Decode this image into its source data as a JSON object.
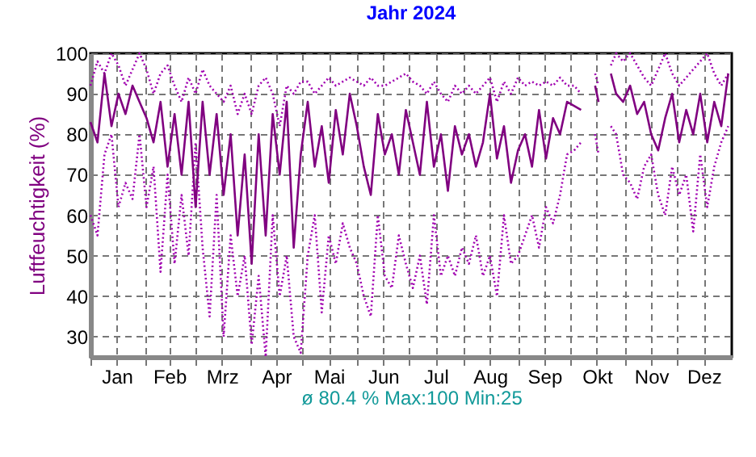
{
  "chart_data": {
    "type": "line",
    "title": "Jahr 2024",
    "xlabel": "ø 80.4 % Max:100 Min:25",
    "ylabel": "Luftfeuchtigkeit (%)",
    "x": [
      "2024-01-01",
      "2024-01-05",
      "2024-01-09",
      "2024-01-13",
      "2024-01-17",
      "2024-01-21",
      "2024-01-25",
      "2024-01-29",
      "2024-02-02",
      "2024-02-06",
      "2024-02-10",
      "2024-02-14",
      "2024-02-18",
      "2024-02-22",
      "2024-02-26",
      "2024-03-01",
      "2024-03-05",
      "2024-03-09",
      "2024-03-13",
      "2024-03-17",
      "2024-03-21",
      "2024-03-25",
      "2024-03-29",
      "2024-04-02",
      "2024-04-06",
      "2024-04-10",
      "2024-04-14",
      "2024-04-18",
      "2024-04-22",
      "2024-04-26",
      "2024-04-30",
      "2024-05-04",
      "2024-05-08",
      "2024-05-12",
      "2024-05-16",
      "2024-05-20",
      "2024-05-24",
      "2024-05-28",
      "2024-06-01",
      "2024-06-05",
      "2024-06-09",
      "2024-06-13",
      "2024-06-17",
      "2024-06-21",
      "2024-06-25",
      "2024-06-29",
      "2024-07-03",
      "2024-07-07",
      "2024-07-11",
      "2024-07-15",
      "2024-07-19",
      "2024-07-23",
      "2024-07-27",
      "2024-07-31",
      "2024-08-04",
      "2024-08-08",
      "2024-08-12",
      "2024-08-16",
      "2024-08-20",
      "2024-08-24",
      "2024-08-28",
      "2024-09-01",
      "2024-09-05",
      "2024-09-09",
      "2024-09-13",
      "2024-09-17",
      "2024-09-21",
      "2024-09-25",
      "2024-09-29",
      "2024-10-03",
      "2024-10-07",
      "2024-10-11",
      "2024-10-15",
      "2024-10-17",
      "2024-10-19",
      "2024-10-24",
      "2024-10-27",
      "2024-10-31",
      "2024-11-04",
      "2024-11-08",
      "2024-11-12",
      "2024-11-16",
      "2024-11-20",
      "2024-11-24",
      "2024-11-28",
      "2024-12-02",
      "2024-12-06",
      "2024-12-10",
      "2024-12-14",
      "2024-12-18",
      "2024-12-22",
      "2024-12-26",
      "2024-12-30"
    ],
    "series": [
      {
        "color": "#a000b0",
        "line_style": "dotted",
        "values": [
          60,
          55,
          75,
          80,
          62,
          68,
          64,
          80,
          62,
          72,
          46,
          70,
          48,
          65,
          50,
          78,
          52,
          35,
          65,
          30,
          55,
          40,
          50,
          28,
          45,
          25,
          60,
          40,
          50,
          30,
          26,
          50,
          60,
          36,
          55,
          48,
          58,
          52,
          48,
          40,
          35,
          60,
          45,
          42,
          55,
          48,
          42,
          50,
          38,
          60,
          45,
          50,
          45,
          52,
          48,
          55,
          45,
          50,
          40,
          60,
          48,
          50,
          55,
          60,
          52,
          62,
          58,
          65,
          75,
          76,
          78,
          null,
          80,
          75,
          null,
          82,
          80,
          70,
          68,
          64,
          72,
          75,
          65,
          60,
          72,
          65,
          70,
          56,
          75,
          62,
          72,
          78,
          82
        ]
      },
      {
        "color": "#a000b0",
        "line_style": "dotted",
        "values": [
          92,
          98,
          95,
          100,
          97,
          92,
          96,
          100,
          96,
          90,
          95,
          97,
          92,
          88,
          94,
          90,
          96,
          92,
          90,
          88,
          92,
          85,
          90,
          85,
          92,
          94,
          90,
          82,
          92,
          90,
          93,
          93,
          90,
          92,
          94,
          92,
          93,
          94,
          93,
          92,
          94,
          92,
          92,
          93,
          94,
          95,
          93,
          92,
          90,
          93,
          90,
          88,
          92,
          90,
          92,
          90,
          92,
          94,
          88,
          93,
          90,
          94,
          92,
          93,
          92,
          93,
          92,
          94,
          92,
          92,
          90,
          null,
          95,
          92,
          null,
          97,
          100,
          98,
          100,
          97,
          94,
          92,
          96,
          100,
          95,
          92,
          94,
          96,
          98,
          100,
          95,
          92,
          95
        ]
      },
      {
        "color": "#800080",
        "line_style": "solid",
        "values": [
          83,
          78,
          95,
          82,
          90,
          85,
          92,
          88,
          84,
          78,
          88,
          72,
          85,
          70,
          88,
          62,
          88,
          70,
          85,
          65,
          80,
          55,
          75,
          48,
          80,
          55,
          85,
          70,
          88,
          52,
          75,
          88,
          72,
          82,
          68,
          86,
          75,
          90,
          82,
          72,
          65,
          85,
          75,
          80,
          70,
          86,
          78,
          70,
          88,
          72,
          80,
          66,
          82,
          75,
          80,
          72,
          78,
          90,
          74,
          82,
          68,
          76,
          80,
          72,
          86,
          74,
          84,
          80,
          88,
          87,
          86,
          null,
          92,
          88,
          null,
          95,
          90,
          88,
          92,
          85,
          88,
          80,
          76,
          84,
          90,
          78,
          86,
          80,
          90,
          78,
          88,
          82,
          95
        ]
      }
    ],
    "xlim": [
      "2024-01-01",
      "2025-01-01"
    ],
    "xticks": [
      {
        "value": "2024-01-01",
        "label": null
      },
      {
        "value": "2024-01-16",
        "label": "Jan"
      },
      {
        "value": "2024-02-01",
        "label": null
      },
      {
        "value": "2024-02-15",
        "label": "Feb"
      },
      {
        "value": "2024-03-01",
        "label": null
      },
      {
        "value": "2024-03-16",
        "label": "Mrz"
      },
      {
        "value": "2024-04-01",
        "label": null
      },
      {
        "value": "2024-04-16",
        "label": "Apr"
      },
      {
        "value": "2024-05-01",
        "label": null
      },
      {
        "value": "2024-05-16",
        "label": "Mai"
      },
      {
        "value": "2024-06-01",
        "label": null
      },
      {
        "value": "2024-06-16",
        "label": "Jun"
      },
      {
        "value": "2024-07-01",
        "label": null
      },
      {
        "value": "2024-07-16",
        "label": "Jul"
      },
      {
        "value": "2024-08-01",
        "label": null
      },
      {
        "value": "2024-08-16",
        "label": "Aug"
      },
      {
        "value": "2024-09-01",
        "label": null
      },
      {
        "value": "2024-09-16",
        "label": "Sep"
      },
      {
        "value": "2024-10-01",
        "label": null
      },
      {
        "value": "2024-10-16",
        "label": "Okt"
      },
      {
        "value": "2024-11-01",
        "label": null
      },
      {
        "value": "2024-11-16",
        "label": "Nov"
      },
      {
        "value": "2024-12-01",
        "label": null
      },
      {
        "value": "2024-12-16",
        "label": "Dez"
      }
    ],
    "ylim": [
      25,
      100
    ],
    "yticks": [
      30,
      40,
      50,
      60,
      70,
      80,
      90,
      100
    ],
    "grid": true
  }
}
